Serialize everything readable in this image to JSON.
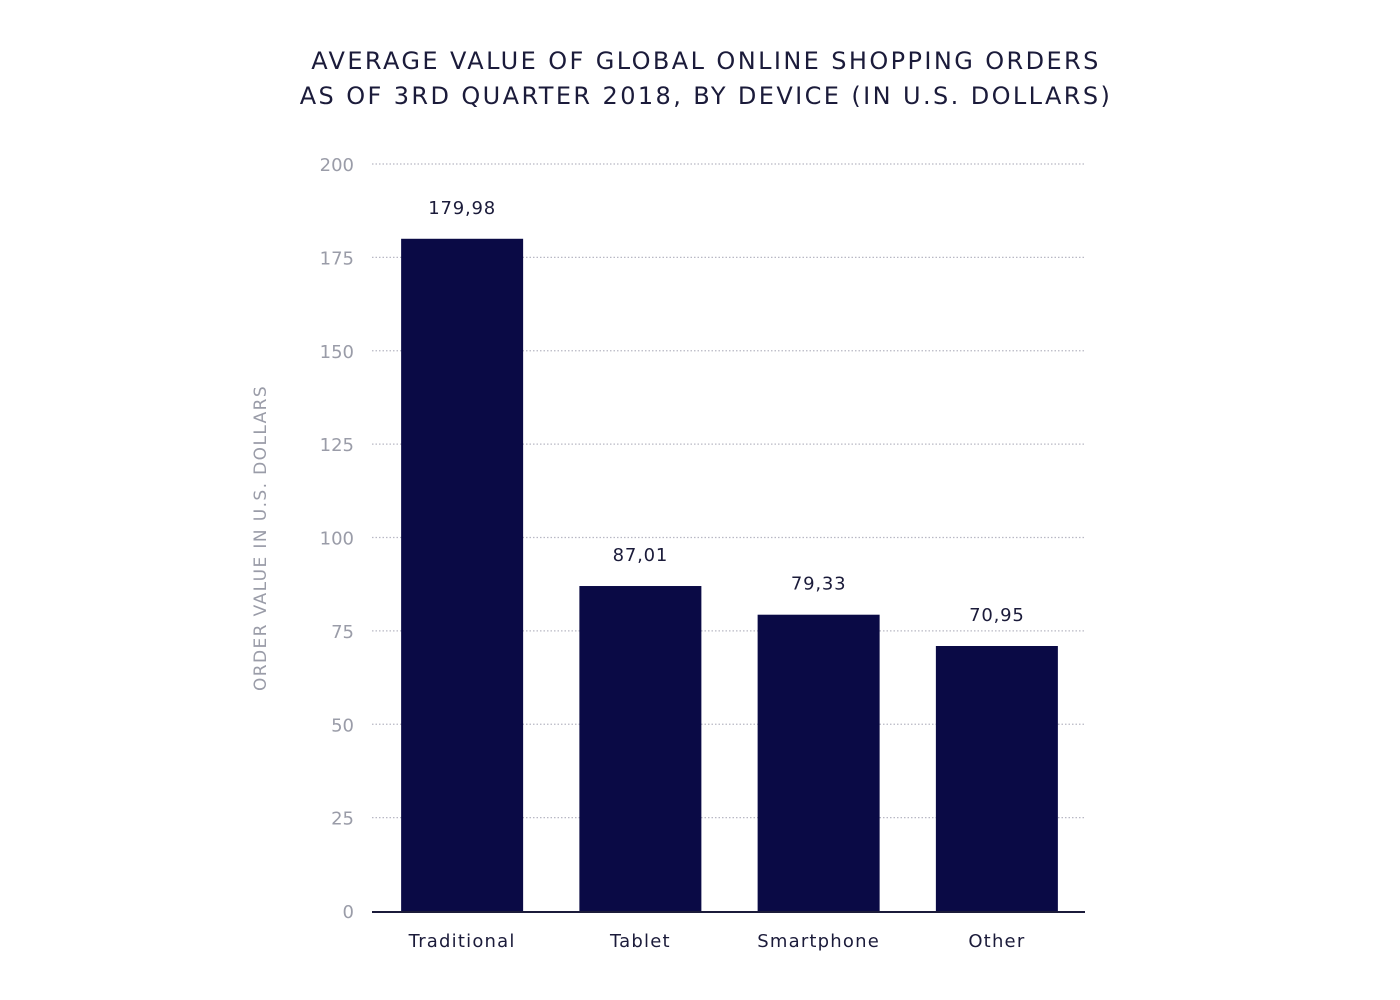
{
  "chart_data": {
    "type": "bar",
    "title": [
      "AVERAGE VALUE OF GLOBAL ONLINE SHOPPING ORDERS",
      "AS OF 3RD QUARTER 2018, BY DEVICE (IN U.S. DOLLARS)"
    ],
    "xlabel": "",
    "ylabel": "ORDER VALUE IN U.S. DOLLARS",
    "categories": [
      "Traditional",
      "Tablet",
      "Smartphone",
      "Other"
    ],
    "values": [
      179.98,
      87.01,
      79.33,
      70.95
    ],
    "value_labels": [
      "179,98",
      "87,01",
      "79,33",
      "70,95"
    ],
    "ylim": [
      0,
      200
    ],
    "yticks": [
      0,
      25,
      50,
      75,
      100,
      125,
      150,
      175,
      200
    ],
    "grid": true,
    "legend": "none",
    "colors": {
      "bar": "#0a0a45",
      "axis": "#1b1b3a",
      "grid": "#b8b8c4",
      "tick_text": "#9a9ca8"
    }
  }
}
